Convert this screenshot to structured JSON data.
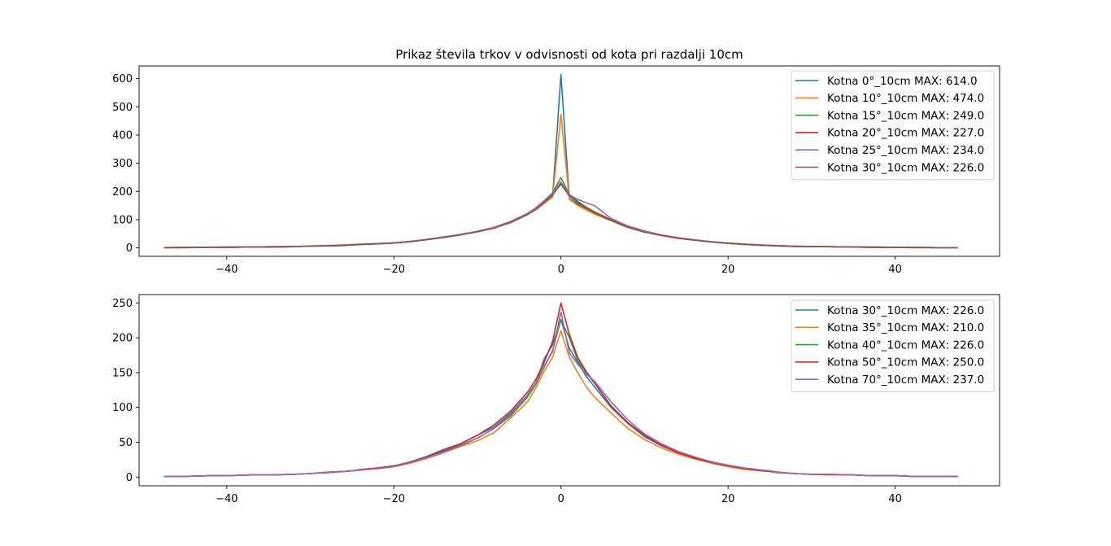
{
  "figure_title": "Prikaz števila trkov v odvisnosti od kota pri razdalji 10cm",
  "chart_data": [
    {
      "type": "line",
      "title": "Prikaz števila trkov v odvisnosti od kota pri razdalji 10cm",
      "xlabel": "",
      "ylabel": "",
      "xlim": [
        -50.5,
        52.5
      ],
      "ylim": [
        -30,
        645
      ],
      "xticks": [
        -40,
        -20,
        0,
        20,
        40
      ],
      "xtick_labels": [
        "−40",
        "−20",
        "0",
        "20",
        "40"
      ],
      "yticks": [
        0,
        100,
        200,
        300,
        400,
        500,
        600
      ],
      "ytick_labels": [
        "0",
        "100",
        "200",
        "300",
        "400",
        "500",
        "600"
      ],
      "grid": false,
      "legend_position": "top-right",
      "x": [
        -47.5,
        -45,
        -42,
        -40,
        -37,
        -35,
        -32,
        -30,
        -28,
        -26,
        -25,
        -24,
        -22,
        -20,
        -18,
        -16,
        -14,
        -12,
        -10,
        -8,
        -6,
        -4,
        -3,
        -2,
        -1,
        0,
        1,
        2,
        3,
        4,
        6,
        8,
        10,
        12,
        14,
        16,
        18,
        20,
        22,
        24,
        25,
        26,
        28,
        30,
        32,
        35,
        37,
        40,
        42,
        45,
        47.5
      ],
      "series": [
        {
          "name": "Kotna 0°_10cm MAX: 614.0",
          "color": "#1f77b4",
          "values": [
            1,
            2,
            2,
            2,
            3,
            3,
            4,
            6,
            7,
            8,
            10,
            12,
            14,
            17,
            22,
            30,
            38,
            48,
            58,
            72,
            92,
            120,
            138,
            160,
            185,
            614,
            175,
            155,
            140,
            125,
            100,
            75,
            58,
            45,
            35,
            28,
            22,
            17,
            13,
            10,
            9,
            8,
            6,
            5,
            4,
            3,
            3,
            2,
            2,
            1,
            1
          ]
        },
        {
          "name": "Kotna 10°_10cm MAX: 474.0",
          "color": "#ff7f0e",
          "values": [
            1,
            1,
            2,
            2,
            3,
            4,
            5,
            6,
            8,
            10,
            12,
            13,
            15,
            18,
            22,
            30,
            38,
            47,
            57,
            70,
            90,
            118,
            135,
            158,
            180,
            474,
            172,
            150,
            135,
            120,
            96,
            72,
            56,
            44,
            34,
            27,
            21,
            16,
            12,
            9,
            8,
            7,
            5,
            5,
            4,
            3,
            2,
            2,
            2,
            1,
            1
          ]
        },
        {
          "name": "Kotna 15°_10cm MAX: 249.0",
          "color": "#2ca02c",
          "values": [
            1,
            2,
            2,
            3,
            3,
            4,
            5,
            6,
            8,
            9,
            11,
            12,
            15,
            18,
            23,
            30,
            39,
            48,
            58,
            72,
            93,
            122,
            142,
            168,
            195,
            249,
            190,
            165,
            145,
            128,
            100,
            76,
            58,
            45,
            35,
            28,
            22,
            17,
            13,
            10,
            9,
            7,
            6,
            5,
            4,
            3,
            3,
            2,
            2,
            1,
            1
          ]
        },
        {
          "name": "Kotna 20°_10cm MAX: 227.0",
          "color": "#d62728",
          "values": [
            1,
            1,
            2,
            2,
            3,
            3,
            4,
            6,
            7,
            9,
            10,
            12,
            14,
            17,
            22,
            29,
            37,
            47,
            57,
            70,
            90,
            118,
            138,
            162,
            190,
            227,
            185,
            160,
            142,
            126,
            98,
            74,
            57,
            44,
            34,
            27,
            21,
            16,
            12,
            9,
            8,
            7,
            5,
            4,
            4,
            3,
            2,
            2,
            1,
            1,
            1
          ]
        },
        {
          "name": "Kotna 25°_10cm MAX: 234.0",
          "color": "#9467bd",
          "values": [
            1,
            2,
            2,
            3,
            3,
            4,
            5,
            7,
            8,
            10,
            11,
            13,
            15,
            18,
            23,
            30,
            38,
            48,
            59,
            73,
            94,
            122,
            142,
            166,
            192,
            234,
            188,
            172,
            160,
            150,
            104,
            78,
            60,
            46,
            36,
            29,
            22,
            17,
            13,
            10,
            9,
            8,
            6,
            5,
            4,
            3,
            3,
            2,
            2,
            1,
            1
          ]
        },
        {
          "name": "Kotna 30°_10cm MAX: 226.0",
          "color": "#8c564b",
          "values": [
            1,
            1,
            2,
            2,
            3,
            3,
            4,
            6,
            7,
            9,
            10,
            12,
            14,
            17,
            22,
            29,
            37,
            46,
            57,
            70,
            90,
            118,
            136,
            160,
            188,
            226,
            184,
            160,
            140,
            124,
            97,
            73,
            56,
            44,
            34,
            27,
            21,
            16,
            12,
            9,
            8,
            7,
            5,
            4,
            4,
            3,
            2,
            2,
            1,
            1,
            1
          ]
        }
      ]
    },
    {
      "type": "line",
      "title": "",
      "xlabel": "",
      "ylabel": "",
      "xlim": [
        -50.5,
        52.5
      ],
      "ylim": [
        -12.5,
        262
      ],
      "xticks": [
        -40,
        -20,
        0,
        20,
        40
      ],
      "xtick_labels": [
        "−40",
        "−20",
        "0",
        "20",
        "40"
      ],
      "yticks": [
        0,
        50,
        100,
        150,
        200,
        250
      ],
      "ytick_labels": [
        "0",
        "50",
        "100",
        "150",
        "200",
        "250"
      ],
      "grid": false,
      "legend_position": "top-right",
      "x": [
        -47.5,
        -45,
        -42,
        -40,
        -37,
        -35,
        -32,
        -30,
        -28,
        -26,
        -25,
        -24,
        -22,
        -20,
        -18,
        -16,
        -14,
        -12,
        -10,
        -8,
        -6,
        -4,
        -3,
        -2,
        -1,
        0,
        1,
        2,
        3,
        4,
        6,
        8,
        10,
        12,
        14,
        16,
        18,
        20,
        22,
        24,
        25,
        26,
        28,
        30,
        32,
        35,
        37,
        40,
        42,
        45,
        47.5
      ],
      "series": [
        {
          "name": "Kotna 30°_10cm MAX: 226.0",
          "color": "#1f77b4",
          "values": [
            1,
            1,
            2,
            2,
            3,
            3,
            4,
            5,
            7,
            8,
            9,
            10,
            12,
            15,
            22,
            30,
            40,
            48,
            60,
            72,
            92,
            118,
            135,
            170,
            190,
            226,
            185,
            165,
            145,
            130,
            100,
            77,
            58,
            45,
            35,
            27,
            21,
            16,
            12,
            9,
            8,
            7,
            5,
            4,
            4,
            3,
            2,
            2,
            1,
            1,
            1
          ]
        },
        {
          "name": "Kotna 35°_10cm MAX: 210.0",
          "color": "#ff7f0e",
          "values": [
            1,
            1,
            2,
            2,
            3,
            3,
            4,
            5,
            6,
            8,
            9,
            10,
            12,
            15,
            20,
            27,
            35,
            44,
            52,
            64,
            85,
            108,
            128,
            152,
            172,
            210,
            172,
            150,
            130,
            115,
            92,
            70,
            54,
            42,
            33,
            26,
            20,
            15,
            11,
            9,
            8,
            6,
            5,
            4,
            3,
            3,
            2,
            2,
            1,
            1,
            1
          ]
        },
        {
          "name": "Kotna 40°_10cm MAX: 226.0",
          "color": "#2ca02c",
          "values": [
            1,
            1,
            2,
            2,
            3,
            3,
            4,
            5,
            7,
            8,
            9,
            10,
            13,
            16,
            21,
            28,
            37,
            46,
            56,
            70,
            88,
            115,
            133,
            158,
            182,
            226,
            200,
            168,
            150,
            135,
            102,
            78,
            60,
            47,
            36,
            28,
            22,
            17,
            13,
            10,
            9,
            7,
            5,
            4,
            4,
            3,
            2,
            2,
            1,
            1,
            1
          ]
        },
        {
          "name": "Kotna 50°_10cm MAX: 250.0",
          "color": "#d62728",
          "values": [
            1,
            1,
            2,
            2,
            3,
            3,
            4,
            5,
            7,
            8,
            9,
            11,
            13,
            16,
            22,
            29,
            38,
            48,
            60,
            75,
            95,
            122,
            140,
            165,
            195,
            250,
            205,
            172,
            152,
            136,
            102,
            78,
            60,
            46,
            35,
            27,
            21,
            16,
            12,
            9,
            8,
            7,
            5,
            4,
            4,
            3,
            2,
            2,
            1,
            1,
            1
          ]
        },
        {
          "name": "Kotna 70°_10cm MAX: 237.0",
          "color": "#9467bd",
          "values": [
            1,
            1,
            2,
            2,
            3,
            3,
            4,
            5,
            7,
            8,
            9,
            10,
            12,
            15,
            21,
            28,
            36,
            45,
            56,
            70,
            90,
            118,
            135,
            160,
            180,
            237,
            178,
            162,
            148,
            138,
            108,
            82,
            62,
            48,
            37,
            29,
            22,
            17,
            13,
            10,
            9,
            7,
            5,
            4,
            4,
            3,
            2,
            2,
            1,
            1,
            1
          ]
        }
      ]
    }
  ]
}
